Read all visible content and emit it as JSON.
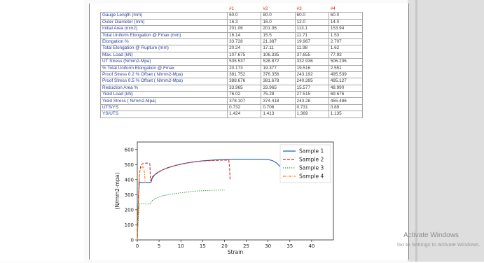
{
  "table": {
    "headers": [
      "",
      "#1",
      "#2",
      "#3",
      "#4"
    ],
    "rows": [
      [
        "Gauge Length (mm)",
        "60.0",
        "80.0",
        "60.0",
        "60.0"
      ],
      [
        "Outer Diameter (mm)",
        "16.3",
        "16.0",
        "12.0",
        "14.0"
      ],
      [
        "Initial Area (mm2)",
        "201.06",
        "201.06",
        "113.1",
        "153.94"
      ],
      [
        "Total Uniform Elongation @ Fmax (mm)",
        "16.14",
        "15.5",
        "11.71",
        "1.53"
      ],
      [
        "Elongation %",
        "33.728",
        "21.387",
        "19.967",
        "2.707"
      ],
      [
        "Total Elongation @ Rupture (mm)",
        "20.24",
        "17.11",
        "11.98",
        "1.62"
      ],
      [
        "Max. Load (kN)",
        "107.675",
        "106.335",
        "37.655",
        "77.93"
      ],
      [
        "UT Stress (N/mm2-Mpa)",
        "535.537",
        "528.872",
        "332.936",
        "506.236"
      ],
      [
        "% Total Uniform Elongation @ Fmax",
        "20.173",
        "19.377",
        "19.516",
        "2.551"
      ],
      [
        "Proof Stress 0.2 % Offset ( N/mm2-Mpa)",
        "381.752",
        "376.356",
        "243.192",
        "495.539"
      ],
      [
        "Proof Stress 0.5 % Offset ( N/mm2-Mpa)",
        "388.676",
        "381.678",
        "240.395",
        "495.127"
      ],
      [
        "Reduction Area %",
        "33.965",
        "33.965",
        "15.577",
        "48.990"
      ],
      [
        "Yield Load (kN)",
        "76.02",
        "75.28",
        "27.515",
        "69.676"
      ],
      [
        "Yield Stress ( N/mm2-Mpa)",
        "378.107",
        "374.418",
        "243.28",
        "455.486"
      ],
      [
        "UTS/YS",
        "0.732",
        "0.706",
        "0.731",
        "0.89"
      ],
      [
        "YS/UTS",
        "1.424",
        "1.413",
        "1.369",
        "1.135"
      ]
    ]
  },
  "chart_data": {
    "type": "line",
    "xlabel": "Strain",
    "ylabel": "(N/mm2-mpa)",
    "xlim": [
      0,
      45
    ],
    "ylim": [
      0,
      650
    ],
    "xticks": [
      0,
      5,
      10,
      15,
      20,
      25,
      30,
      35,
      40
    ],
    "yticks": [
      0,
      100,
      200,
      300,
      400,
      500,
      600
    ],
    "legend_position": "top-right",
    "series": [
      {
        "name": "Sample 1",
        "color": "#1f5fbf",
        "style": "solid",
        "points": [
          [
            0,
            0
          ],
          [
            0.3,
            300
          ],
          [
            0.5,
            385
          ],
          [
            1,
            380
          ],
          [
            2,
            383
          ],
          [
            2.5,
            380
          ],
          [
            3,
            382
          ],
          [
            3.2,
            385
          ],
          [
            3.5,
            420
          ],
          [
            4.5,
            445
          ],
          [
            6,
            468
          ],
          [
            8,
            488
          ],
          [
            10,
            503
          ],
          [
            12,
            514
          ],
          [
            15,
            525
          ],
          [
            18,
            531
          ],
          [
            20,
            533
          ],
          [
            22,
            535
          ],
          [
            25,
            536
          ],
          [
            28,
            535
          ],
          [
            30,
            533
          ],
          [
            31,
            527
          ],
          [
            32,
            510
          ],
          [
            33,
            480
          ],
          [
            33.5,
            465
          ]
        ]
      },
      {
        "name": "Sample 2",
        "color": "#d62728",
        "style": "dashed",
        "points": [
          [
            0,
            0
          ],
          [
            0.3,
            320
          ],
          [
            0.5,
            440
          ],
          [
            0.8,
            495
          ],
          [
            1.2,
            505
          ],
          [
            1.8,
            510
          ],
          [
            2.6,
            510
          ],
          [
            2.9,
            505
          ],
          [
            3.0,
            395
          ],
          [
            3.3,
            405
          ],
          [
            4,
            432
          ],
          [
            5.5,
            460
          ],
          [
            7,
            480
          ],
          [
            9,
            497
          ],
          [
            11,
            509
          ],
          [
            13,
            518
          ],
          [
            15,
            524
          ],
          [
            17,
            527
          ],
          [
            19,
            529
          ],
          [
            21,
            530
          ],
          [
            21.2,
            470
          ],
          [
            21.3,
            400
          ]
        ]
      },
      {
        "name": "Sample 3",
        "color": "#2ca02c",
        "style": "dotted",
        "points": [
          [
            0,
            0
          ],
          [
            0.3,
            180
          ],
          [
            0.6,
            240
          ],
          [
            1,
            242
          ],
          [
            2,
            238
          ],
          [
            3,
            240
          ],
          [
            3.3,
            258
          ],
          [
            4,
            272
          ],
          [
            5,
            285
          ],
          [
            6,
            294
          ],
          [
            8,
            305
          ],
          [
            10,
            313
          ],
          [
            12,
            320
          ],
          [
            14,
            325
          ],
          [
            16,
            328
          ],
          [
            18,
            330
          ],
          [
            19.5,
            331
          ],
          [
            20,
            330
          ]
        ]
      },
      {
        "name": "Sample 4",
        "color": "#ff7f0e",
        "style": "dashdot",
        "points": [
          [
            0,
            0
          ],
          [
            0.2,
            200
          ],
          [
            0.35,
            380
          ],
          [
            0.5,
            450
          ],
          [
            0.7,
            470
          ],
          [
            1.0,
            480
          ],
          [
            1.3,
            485
          ],
          [
            1.5,
            478
          ],
          [
            1.7,
            430
          ],
          [
            1.8,
            380
          ]
        ]
      }
    ]
  },
  "watermark": {
    "title": "Activate Windows",
    "subtitle": "Go to Settings to activate Windows."
  }
}
